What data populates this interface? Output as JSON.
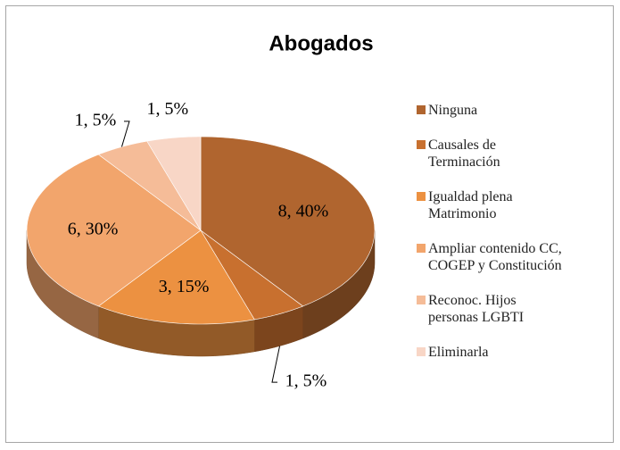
{
  "chart_data": {
    "type": "pie3d",
    "title": "Abogados",
    "categories": [
      "Ninguna",
      "Causales de Terminación",
      "Igualdad plena Matrimonio",
      "Ampliar contenido CC, COGEP y Constitución",
      "Reconoc. Hijos personas LGBTI",
      "Eliminarla"
    ],
    "values": [
      8,
      1,
      3,
      6,
      1,
      1
    ],
    "value_labels": [
      "8, 40%",
      "1, 5%",
      "3, 15%",
      "6, 30%",
      "1, 5%",
      "1, 5%"
    ],
    "colors": [
      "#b0652f",
      "#c8702f",
      "#ec9141",
      "#f2a56c",
      "#f5bc98",
      "#f8d6c6"
    ],
    "legend": "right"
  }
}
